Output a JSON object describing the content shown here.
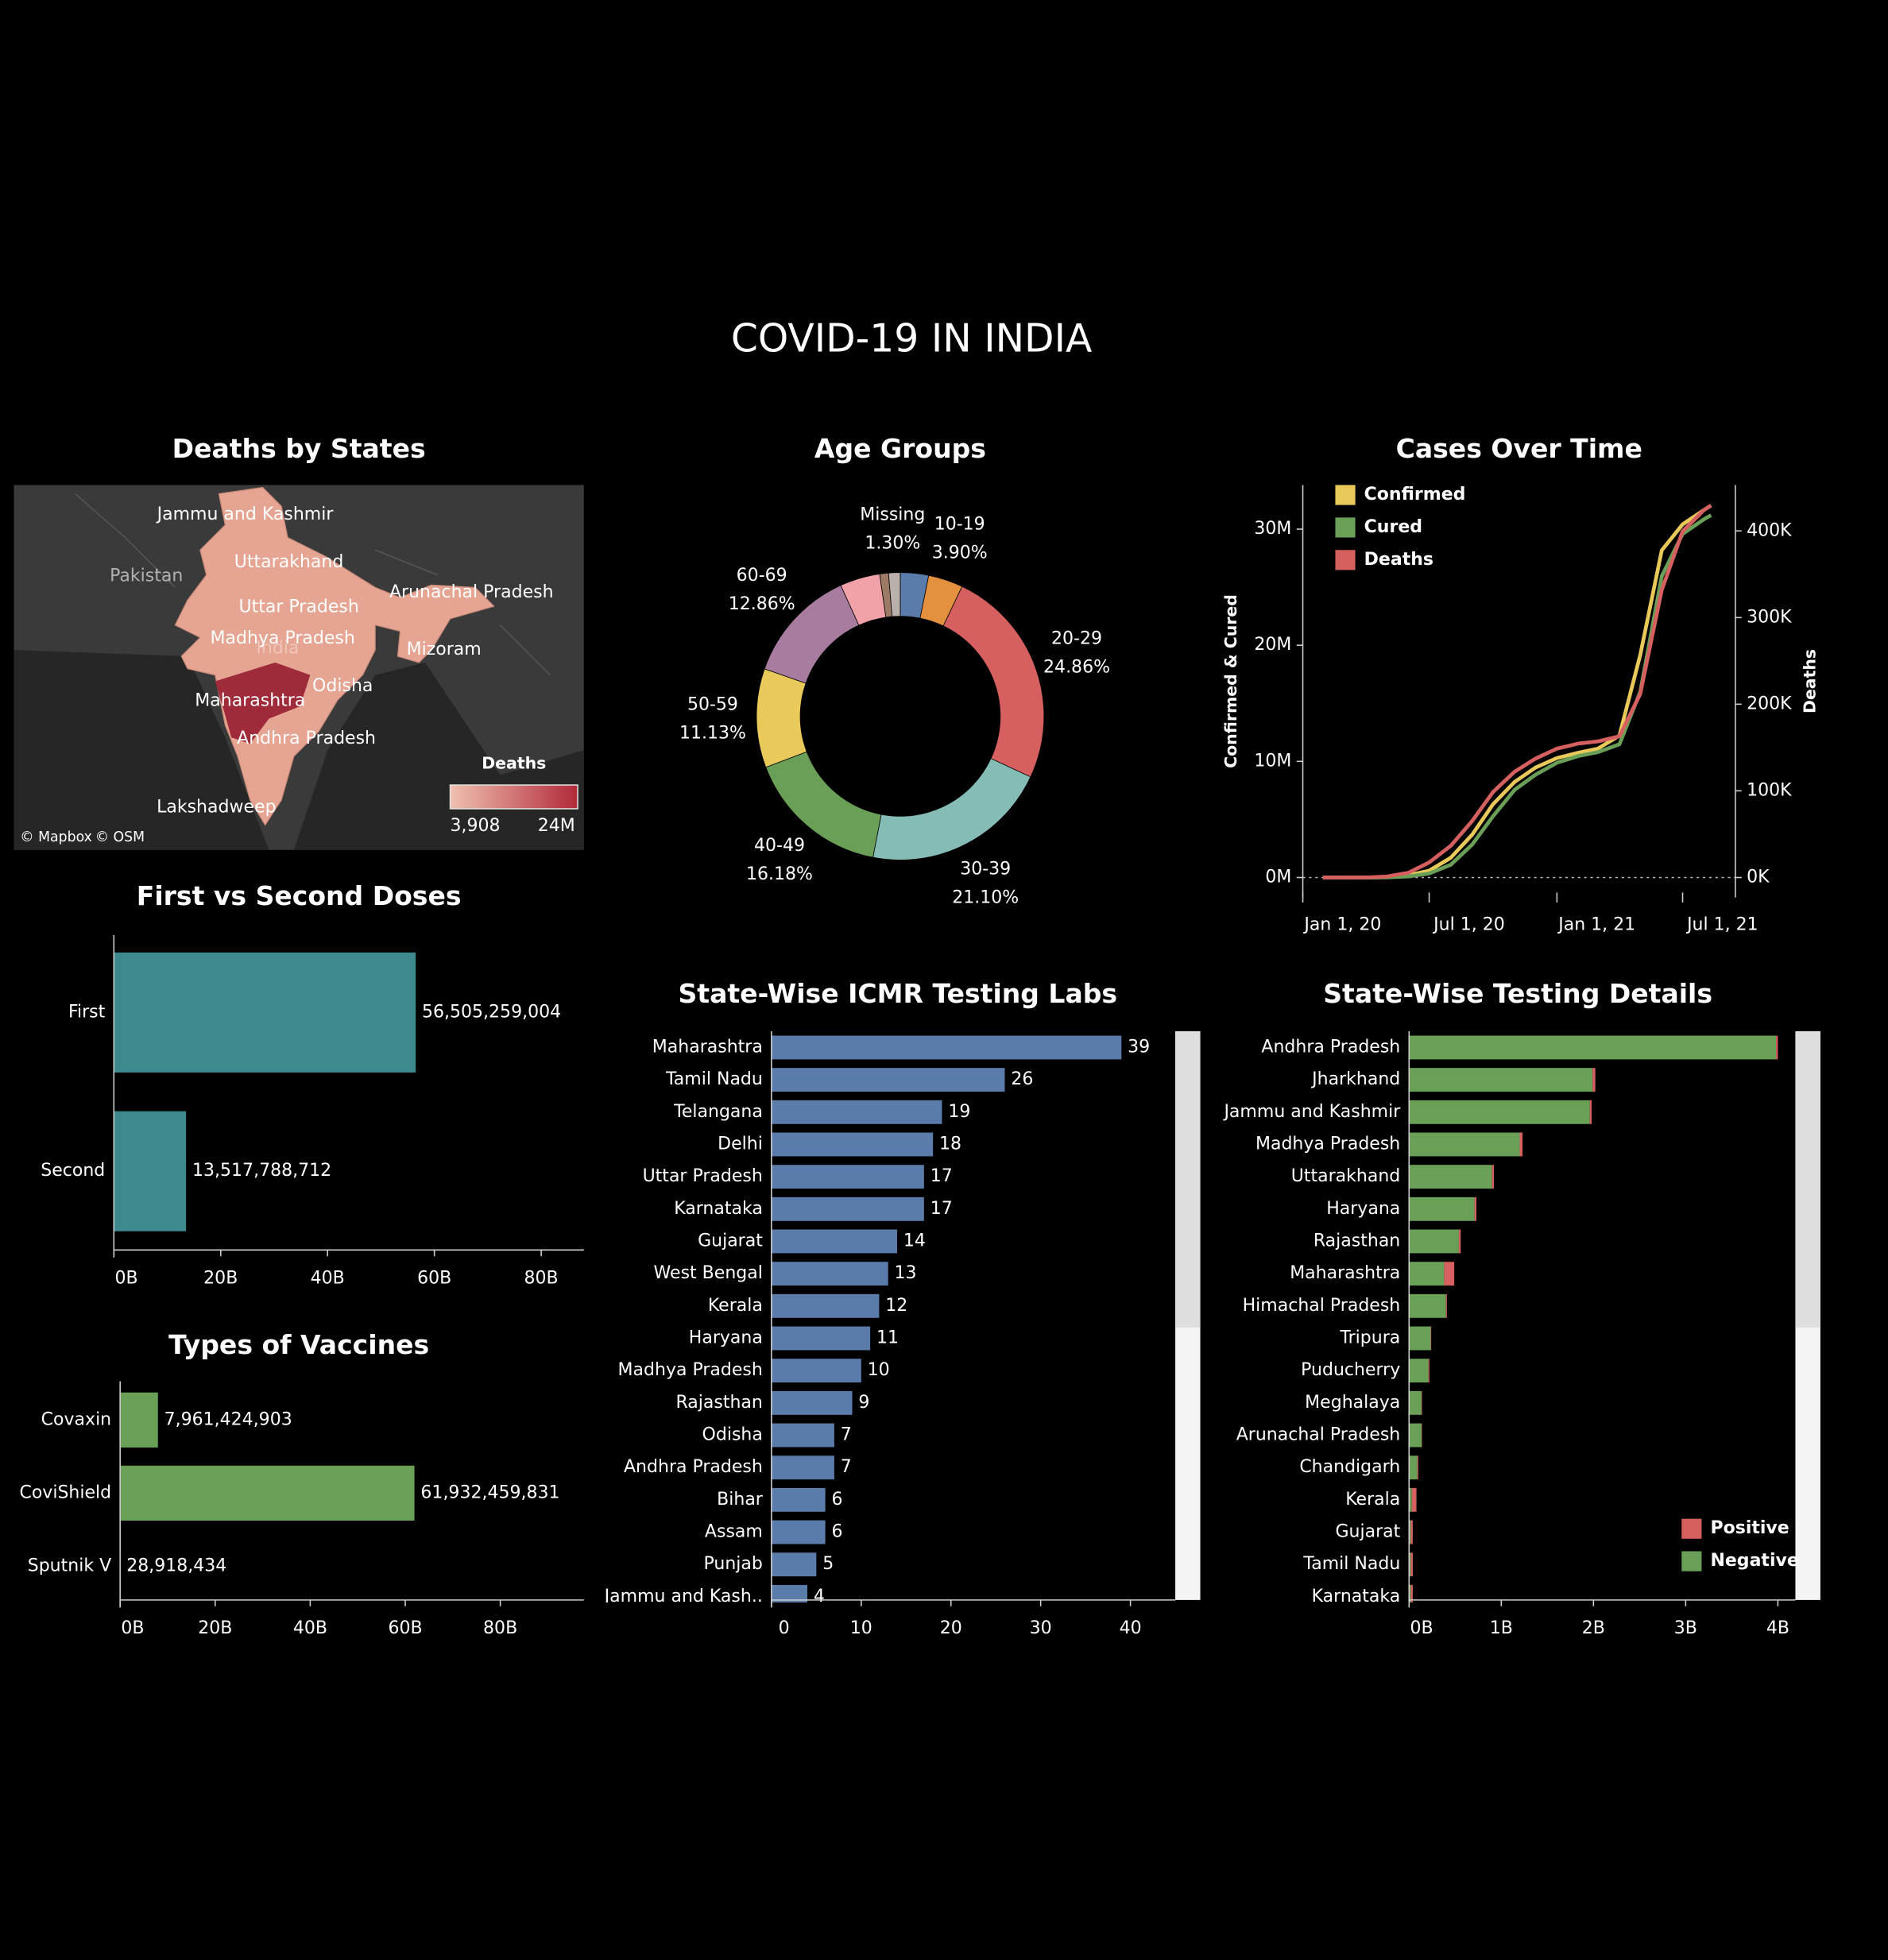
{
  "title": "COVID-19 IN INDIA",
  "chart_data": [
    {
      "type": "map",
      "title": "Deaths by States",
      "places": [
        "Jammu and Kashmir",
        "Pakistan",
        "Uttarakhand",
        "Arunachal Pradesh",
        "Uttar Pradesh",
        "Madhya Pradesh",
        "India",
        "Mizoram",
        "Odisha",
        "Maharashtra",
        "Andhra Pradesh",
        "Lakshadweep"
      ],
      "attribution": [
        "© Mapbox",
        "© OSM"
      ],
      "legend": {
        "title": "Deaths",
        "min": {
          "value": 3908,
          "label": "3,908"
        },
        "max": {
          "value": 24000000,
          "label": "24M"
        },
        "colors": [
          "#f0c0b0",
          "#b22a3a"
        ]
      }
    },
    {
      "type": "pie",
      "title": "Age Groups",
      "donut": true,
      "categories": [
        null,
        "10-19",
        "20-29",
        "30-39",
        "40-49",
        "50-59",
        "60-69",
        null,
        null,
        "Missing"
      ],
      "values": [
        3.18,
        3.9,
        24.86,
        21.1,
        16.18,
        11.13,
        12.86,
        4.5,
        0.99,
        1.3
      ],
      "value_labels": [
        null,
        "3.90%",
        "24.86%",
        "21.10%",
        "16.18%",
        "11.13%",
        "12.86%",
        null,
        null,
        "1.30%"
      ],
      "colors": [
        "#5b7bab",
        "#e3913f",
        "#d65f5f",
        "#86bcb6",
        "#6a9f58",
        "#e8c95a",
        "#a77c9e",
        "#f1a2a9",
        "#9c7a66",
        "#bab0ac"
      ]
    },
    {
      "type": "line",
      "title": "Cases Over Time",
      "y_label": "Confirmed & Cured",
      "y2_label": "Deaths",
      "legend": "top-left",
      "x": [
        "2020-01-30",
        "2020-03-01",
        "2020-04-01",
        "2020-05-01",
        "2020-06-01",
        "2020-07-01",
        "2020-08-01",
        "2020-09-01",
        "2020-10-01",
        "2020-11-01",
        "2020-12-01",
        "2021-01-01",
        "2021-02-01",
        "2021-03-01",
        "2021-04-01",
        "2021-05-01",
        "2021-06-01",
        "2021-07-01",
        "2021-08-01",
        "2021-08-11"
      ],
      "xlim": [
        "2020-01-01",
        "2021-09-15"
      ],
      "xticks": [
        {
          "value": "2020-01-01",
          "label": "Jan 1, 20"
        },
        {
          "value": "2020-07-01",
          "label": "Jul 1, 20"
        },
        {
          "value": "2021-01-01",
          "label": "Jan 1, 21"
        },
        {
          "value": "2021-07-01",
          "label": "Jul 1, 21"
        }
      ],
      "ylim": [
        0,
        33800000
      ],
      "yticks": [
        {
          "value": 0,
          "label": "0M"
        },
        {
          "value": 10000000,
          "label": "10M"
        },
        {
          "value": 20000000,
          "label": "20M"
        },
        {
          "value": 30000000,
          "label": "30M"
        }
      ],
      "y2lim": [
        0,
        453000
      ],
      "y2ticks": [
        {
          "value": 0,
          "label": "0K"
        },
        {
          "value": 100000,
          "label": "100K"
        },
        {
          "value": 200000,
          "label": "200K"
        },
        {
          "value": 300000,
          "label": "300K"
        },
        {
          "value": 400000,
          "label": "400K"
        }
      ],
      "series": [
        {
          "name": "Confirmed",
          "color": "#e8c95a",
          "values": [
            1,
            3,
            1998,
            35043,
            190535,
            585493,
            1695988,
            3691166,
            6312584,
            8229313,
            9462809,
            10286709,
            10746183,
            11096731,
            12221665,
            19164969,
            28175044,
            30411634,
            31655824,
            32036511
          ]
        },
        {
          "name": "Cured",
          "color": "#6a9f58",
          "values": [
            0,
            0,
            157,
            8889,
            91819,
            347912,
            1094374,
            2839882,
            5273201,
            7544798,
            8847600,
            9883461,
            10462631,
            10796554,
            11469731,
            15992271,
            25947629,
            29588743,
            30857467,
            31199000
          ]
        },
        {
          "name": "Deaths",
          "color": "#d65f5f",
          "axis": "y2",
          "values": [
            0,
            0,
            58,
            1147,
            5394,
            17400,
            36511,
            65288,
            98678,
            122111,
            137139,
            148738,
            154596,
            157051,
            162960,
            211853,
            331895,
            399459,
            424351,
            429179
          ]
        }
      ]
    },
    {
      "type": "bar",
      "horizontal": true,
      "title": "First vs Second Doses",
      "color": "#3d8a8e",
      "categories": [
        "First",
        "Second"
      ],
      "values": [
        56505259004,
        13517788712
      ],
      "value_labels": [
        "56,505,259,004",
        "13,517,788,712"
      ],
      "xlim": [
        0,
        88000000000
      ],
      "xticks": [
        {
          "value": 0,
          "label": "0B"
        },
        {
          "value": 20000000000,
          "label": "20B"
        },
        {
          "value": 40000000000,
          "label": "40B"
        },
        {
          "value": 60000000000,
          "label": "60B"
        },
        {
          "value": 80000000000,
          "label": "80B"
        }
      ]
    },
    {
      "type": "bar",
      "horizontal": true,
      "title": "Types of Vaccines",
      "color": "#6a9f58",
      "categories": [
        "Covaxin",
        "CoviShield",
        "Sputnik V"
      ],
      "values": [
        7961424903,
        61932459831,
        28918434
      ],
      "value_labels": [
        "7,961,424,903",
        "61,932,459,831",
        "28,918,434"
      ],
      "xlim": [
        0,
        97600000000
      ],
      "xticks": [
        {
          "value": 0,
          "label": "0B"
        },
        {
          "value": 20000000000,
          "label": "20B"
        },
        {
          "value": 40000000000,
          "label": "40B"
        },
        {
          "value": 60000000000,
          "label": "60B"
        },
        {
          "value": 80000000000,
          "label": "80B"
        }
      ]
    },
    {
      "type": "bar",
      "horizontal": true,
      "title": "State-Wise ICMR Testing Labs",
      "color": "#5b7bab",
      "categories": [
        "Maharashtra",
        "Tamil Nadu",
        "Telangana",
        "Delhi",
        "Uttar Pradesh",
        "Karnataka",
        "Gujarat",
        "West Bengal",
        "Kerala",
        "Haryana",
        "Madhya Pradesh",
        "Rajasthan",
        "Odisha",
        "Andhra Pradesh",
        "Bihar",
        "Assam",
        "Punjab",
        "Jammu and Kash.."
      ],
      "values": [
        39,
        26,
        19,
        18,
        17,
        17,
        14,
        13,
        12,
        11,
        10,
        9,
        7,
        7,
        6,
        6,
        5,
        4
      ],
      "xlim": [
        0,
        45
      ],
      "xticks": [
        0,
        10,
        20,
        30,
        40
      ]
    },
    {
      "type": "bar",
      "horizontal": true,
      "stacked": true,
      "title": "State-Wise Testing Details",
      "legend": "bottom-right",
      "categories": [
        "Andhra Pradesh",
        "Jharkhand",
        "Jammu and Kashmir",
        "Madhya Pradesh",
        "Uttarakhand",
        "Haryana",
        "Rajasthan",
        "Maharashtra",
        "Himachal Pradesh",
        "Tripura",
        "Puducherry",
        "Meghalaya",
        "Arunachal Pradesh",
        "Chandigarh",
        "Kerala",
        "Gujarat",
        "Tamil Nadu",
        "Karnataka"
      ],
      "series": [
        {
          "name": "Negative",
          "color": "#6a9f58",
          "values": [
            3980000000,
            1990000000,
            1960000000,
            1200000000,
            900000000,
            710000000,
            540000000,
            380000000,
            400000000,
            235000000,
            210000000,
            135000000,
            136000000,
            90000000,
            30000000,
            20000000,
            20000000,
            20000000
          ]
        },
        {
          "name": "Positive",
          "color": "#d65f5f",
          "values": [
            20000000,
            30000000,
            20000000,
            30000000,
            20000000,
            20000000,
            20000000,
            110000000,
            10000000,
            5000000,
            10000000,
            5000000,
            4000000,
            10000000,
            50000000,
            20000000,
            20000000,
            20000000
          ]
        }
      ],
      "xlim": [
        0,
        4190000000
      ],
      "xticks": [
        {
          "value": 0,
          "label": "0B"
        },
        {
          "value": 1000000000,
          "label": "1B"
        },
        {
          "value": 2000000000,
          "label": "2B"
        },
        {
          "value": 3000000000,
          "label": "3B"
        },
        {
          "value": 4000000000,
          "label": "4B"
        }
      ]
    }
  ]
}
